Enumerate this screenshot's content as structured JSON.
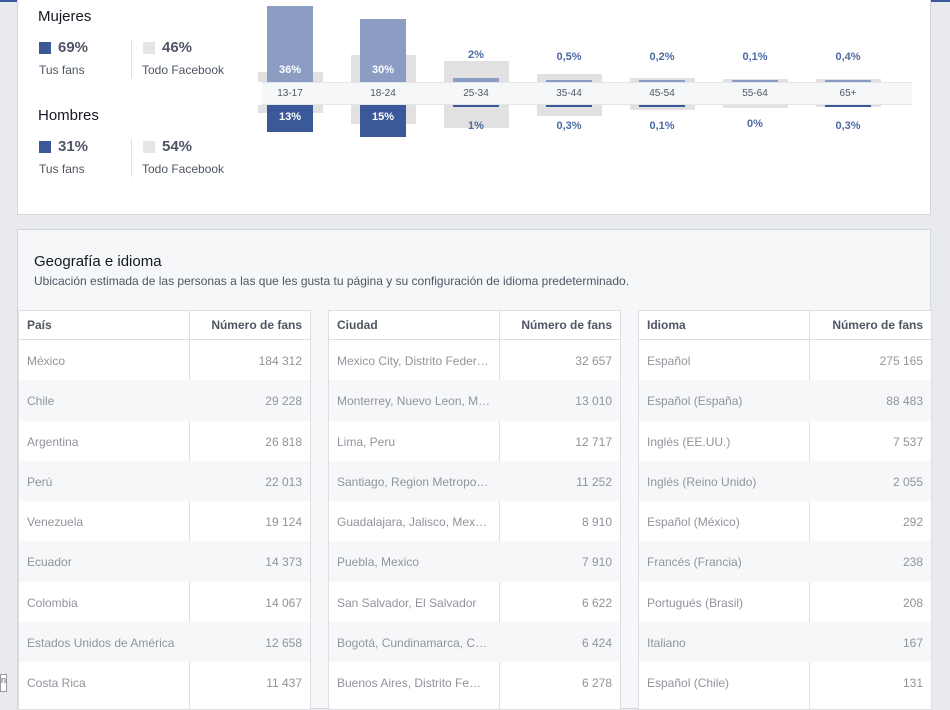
{
  "demographics": {
    "women": {
      "title": "Mujeres",
      "fans_pct": "69%",
      "fans_label": "Tus fans",
      "all_pct": "46%",
      "all_label": "Todo Facebook"
    },
    "men": {
      "title": "Hombres",
      "fans_pct": "31%",
      "fans_label": "Tus fans",
      "all_pct": "54%",
      "all_label": "Todo Facebook"
    }
  },
  "chart_data": {
    "type": "bar",
    "categories": [
      "13-17",
      "18-24",
      "25-34",
      "35-44",
      "45-54",
      "55-64",
      "65+"
    ],
    "series": [
      {
        "name": "Mujeres",
        "values": [
          36,
          30,
          2,
          0.5,
          0.2,
          0.1,
          0.4
        ],
        "labels": [
          "36%",
          "30%",
          "2%",
          "0,5%",
          "0,2%",
          "0,1%",
          "0,4%"
        ]
      },
      {
        "name": "Hombres",
        "values": [
          13,
          15,
          1,
          0.3,
          0.1,
          0,
          0.3
        ],
        "labels": [
          "13%",
          "15%",
          "1%",
          "0,3%",
          "0,1%",
          "0%",
          "0,3%"
        ]
      }
    ],
    "facebook_women": [
      5,
      13,
      10,
      4,
      2,
      1.5,
      1.5
    ],
    "facebook_men": [
      4,
      9,
      11,
      5,
      2.5,
      1.5,
      1
    ]
  },
  "geo": {
    "title": "Geografía e idioma",
    "subtitle": "Ubicación estimada de las personas a las que les gusta tu página y su configuración de idioma predeterminado.",
    "tables": [
      {
        "col1": "País",
        "col2": "Número de fans",
        "rows": [
          [
            "México",
            "184 312"
          ],
          [
            "Chile",
            "29 228"
          ],
          [
            "Argentina",
            "26 818"
          ],
          [
            "Perú",
            "22 013"
          ],
          [
            "Venezuela",
            "19 124"
          ],
          [
            "Ecuador",
            "14 373"
          ],
          [
            "Colombia",
            "14 067"
          ],
          [
            "Estados Unidos de América",
            "12 658"
          ],
          [
            "Costa Rica",
            "11 437"
          ]
        ]
      },
      {
        "col1": "Ciudad",
        "col2": "Número de fans",
        "rows": [
          [
            "Mexico City, Distrito Feder…",
            "32 657"
          ],
          [
            "Monterrey, Nuevo Leon, M…",
            "13 010"
          ],
          [
            "Lima, Peru",
            "12 717"
          ],
          [
            "Santiago, Region Metropo…",
            "11 252"
          ],
          [
            "Guadalajara, Jalisco, Mex…",
            "8 910"
          ],
          [
            "Puebla, Mexico",
            "7 910"
          ],
          [
            "San Salvador, El Salvador",
            "6 622"
          ],
          [
            "Bogotá, Cundinamarca, C…",
            "6 424"
          ],
          [
            "Buenos Aires, Distrito Fe…",
            "6 278"
          ]
        ]
      },
      {
        "col1": "Idioma",
        "col2": "Número de fans",
        "rows": [
          [
            "Español",
            "275 165"
          ],
          [
            "Español (España)",
            "88 483"
          ],
          [
            "Inglés (EE.UU.)",
            "7 537"
          ],
          [
            "Inglés (Reino Unido)",
            "2 055"
          ],
          [
            "Español (México)",
            "292"
          ],
          [
            "Francés (Francia)",
            "238"
          ],
          [
            "Portugués (Brasil)",
            "208"
          ],
          [
            "Italiano",
            "167"
          ],
          [
            "Español (Chile)",
            "131"
          ]
        ]
      }
    ]
  },
  "corner_glyph": "n"
}
